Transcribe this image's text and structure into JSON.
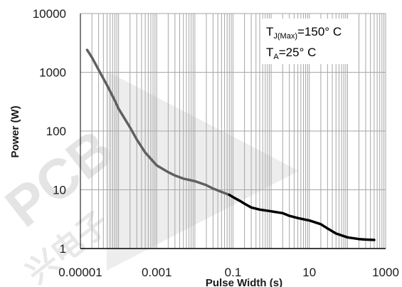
{
  "chart_data": {
    "type": "line",
    "title": "",
    "xlabel": "Pulse Width (s)",
    "ylabel": "Power (W)",
    "x_scale": "log",
    "y_scale": "log",
    "xlim": [
      1e-05,
      1000
    ],
    "ylim": [
      1,
      10000
    ],
    "grid": true,
    "x_ticks": [
      "0.00001",
      "0.001",
      "0.1",
      "10",
      "1000"
    ],
    "y_ticks": [
      "1",
      "10",
      "100",
      "1000",
      "10000"
    ],
    "annotation": {
      "line1": {
        "main": "T",
        "sub": "J(Max)",
        "rest": "=150° C"
      },
      "line2": {
        "main": "T",
        "sub": "A",
        "rest": "=25° C"
      }
    },
    "watermark": [
      "PCB",
      "兴电子"
    ],
    "colors": {
      "curve_light": "#606060",
      "curve_dark": "#000000",
      "grid": "#a6a6a6"
    },
    "series": [
      {
        "x": [
          1.5e-05,
          2e-05,
          3e-05,
          5e-05,
          8e-05,
          0.0001,
          0.0002,
          0.0003,
          0.0005,
          0.001,
          0.002,
          0.003,
          0.005,
          0.01,
          0.02,
          0.03,
          0.05,
          0.08,
          0.1,
          0.15,
          0.2,
          0.3,
          0.5,
          1,
          2,
          3,
          5,
          10,
          20,
          30,
          50,
          100,
          200,
          300,
          500
        ],
        "y": [
          2400,
          1800,
          1100,
          600,
          330,
          240,
          115,
          72,
          43,
          26,
          20,
          17.5,
          15.5,
          14,
          12,
          10.5,
          9.2,
          8.2,
          7.5,
          6.5,
          5.8,
          5.0,
          4.6,
          4.3,
          4.0,
          3.6,
          3.3,
          3.0,
          2.6,
          2.2,
          1.8,
          1.55,
          1.45,
          1.42,
          1.4
        ]
      }
    ]
  }
}
